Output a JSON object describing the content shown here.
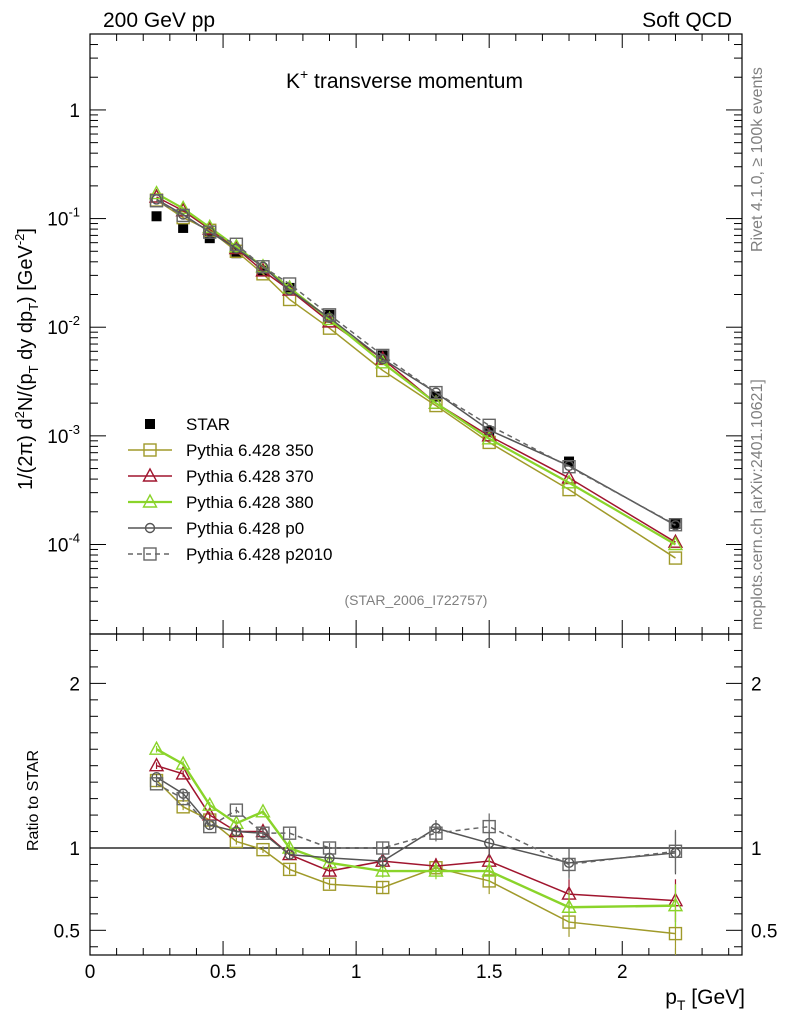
{
  "header": {
    "left": "200 GeV pp",
    "right": "Soft QCD"
  },
  "side_labels": {
    "rivet": "Rivet 4.1.0, ≥ 100k events",
    "mcplots": "mcplots.cern.ch [arXiv:2401.10621]"
  },
  "watermark": "(STAR_2006_I722757)",
  "colors": {
    "star": "#000000",
    "p350": "#a09a2a",
    "p370": "#a0152e",
    "p380": "#8ad42a",
    "p0": "#555555",
    "p2010": "#666666"
  },
  "chart_data": [
    {
      "type": "scatter",
      "panel": "main",
      "title": "K⁺ transverse momentum",
      "title_main": "K",
      "title_sup": "+",
      "title_rest": " transverse momentum",
      "ylabel": "1/(2π)  d²N/(pT dy dpT) [GeV⁻²]",
      "ylabel_parts": {
        "a": "1/(2",
        "pi": "π",
        "b": ")   d",
        "two": "2",
        "c": "N/(p",
        "T1": "T",
        "d": " dy dp",
        "T2": "T",
        "e": ") [GeV",
        "m2": "-2",
        "f": "]"
      },
      "yscale": "log",
      "ylim": [
        1.5e-05,
        5
      ],
      "xlim": [
        0,
        2.45
      ],
      "y_ticks": [
        {
          "value": 1,
          "label": "1",
          "base": "",
          "exp": ""
        },
        {
          "value": 0.1,
          "label": "",
          "base": "10",
          "exp": "-1"
        },
        {
          "value": 0.01,
          "label": "",
          "base": "10",
          "exp": "-2"
        },
        {
          "value": 0.001,
          "label": "",
          "base": "10",
          "exp": "-3"
        },
        {
          "value": 0.0001,
          "label": "",
          "base": "10",
          "exp": "-4"
        }
      ],
      "x": [
        0.25,
        0.35,
        0.45,
        0.55,
        0.65,
        0.75,
        0.9,
        1.1,
        1.3,
        1.5,
        1.8,
        2.2
      ],
      "series": [
        {
          "key": "star",
          "name": "STAR",
          "marker": "filled-square",
          "style": "none",
          "values": [
            0.105,
            0.082,
            0.066,
            0.048,
            0.033,
            0.023,
            0.013,
            0.0055,
            0.0023,
            0.0011,
            0.00058,
            0.000155
          ]
        },
        {
          "key": "p350",
          "name": "Pythia 6.428 350",
          "marker": "open-square",
          "style": "solid",
          "values": [
            0.148,
            0.102,
            0.078,
            0.05,
            0.031,
            0.018,
            0.0098,
            0.004,
            0.0019,
            0.00087,
            0.00032,
            7.5e-05
          ]
        },
        {
          "key": "p370",
          "name": "Pythia 6.428 370",
          "marker": "open-triangle",
          "style": "solid",
          "values": [
            0.158,
            0.118,
            0.08,
            0.053,
            0.033,
            0.022,
            0.0112,
            0.0051,
            0.002,
            0.001,
            0.00041,
            0.000105
          ]
        },
        {
          "key": "p380",
          "name": "Pythia 6.428 380",
          "marker": "open-triangle",
          "style": "solid",
          "values": [
            0.17,
            0.124,
            0.083,
            0.055,
            0.036,
            0.023,
            0.0118,
            0.0047,
            0.002,
            0.00094,
            0.00037,
            0.0001
          ]
        },
        {
          "key": "p0",
          "name": "Pythia 6.428 p0",
          "marker": "open-circle",
          "style": "solid",
          "values": [
            0.15,
            0.109,
            0.075,
            0.053,
            0.036,
            0.022,
            0.0122,
            0.0051,
            0.0025,
            0.00113,
            0.00053,
            0.00015
          ]
        },
        {
          "key": "p2010",
          "name": "Pythia 6.428 p2010",
          "marker": "open-square",
          "style": "dashed",
          "values": [
            0.146,
            0.107,
            0.075,
            0.058,
            0.036,
            0.025,
            0.013,
            0.0055,
            0.0025,
            0.00125,
            0.00052,
            0.000152
          ]
        }
      ]
    },
    {
      "type": "scatter",
      "panel": "ratio",
      "ylabel": "Ratio to STAR",
      "xlabel": "pT [GeV]",
      "xlabel_parts": {
        "p": "p",
        "T": "T",
        "unit": " [GeV]"
      },
      "ylim": [
        0.35,
        2.3
      ],
      "xlim": [
        0,
        2.45
      ],
      "y_ticks": [
        {
          "value": 0.5,
          "label": "0.5"
        },
        {
          "value": 1,
          "label": "1"
        },
        {
          "value": 2,
          "label": "2"
        }
      ],
      "x_ticks": [
        {
          "value": 0,
          "label": "0"
        },
        {
          "value": 0.5,
          "label": "0.5"
        },
        {
          "value": 1,
          "label": "1"
        },
        {
          "value": 1.5,
          "label": "1.5"
        },
        {
          "value": 2,
          "label": "2"
        }
      ],
      "x": [
        0.25,
        0.35,
        0.45,
        0.55,
        0.65,
        0.75,
        0.9,
        1.1,
        1.3,
        1.5,
        1.8,
        2.2
      ],
      "series": [
        {
          "key": "p350",
          "name": "Pythia 6.428 350",
          "marker": "open-square",
          "style": "solid",
          "values": [
            1.41,
            1.25,
            1.17,
            1.04,
            0.99,
            0.87,
            0.78,
            0.76,
            0.88,
            0.8,
            0.55,
            0.48
          ],
          "errors": [
            0.02,
            0.02,
            0.02,
            0.02,
            0.02,
            0.03,
            0.03,
            0.04,
            0.05,
            0.08,
            0.09,
            0.13
          ]
        },
        {
          "key": "p370",
          "name": "Pythia 6.428 370",
          "marker": "open-triangle",
          "style": "solid",
          "values": [
            1.5,
            1.45,
            1.2,
            1.1,
            1.1,
            0.96,
            0.86,
            0.92,
            0.89,
            0.92,
            0.72,
            0.68
          ],
          "errors": [
            0.02,
            0.02,
            0.02,
            0.02,
            0.02,
            0.03,
            0.03,
            0.04,
            0.05,
            0.08,
            0.09,
            0.13
          ]
        },
        {
          "key": "p380",
          "name": "Pythia 6.428 380",
          "marker": "open-triangle",
          "style": "solid",
          "values": [
            1.6,
            1.51,
            1.26,
            1.15,
            1.22,
            1.0,
            0.91,
            0.86,
            0.86,
            0.86,
            0.64,
            0.65
          ],
          "errors": [
            0.02,
            0.02,
            0.02,
            0.02,
            0.02,
            0.03,
            0.03,
            0.04,
            0.05,
            0.08,
            0.09,
            0.13
          ]
        },
        {
          "key": "p0",
          "name": "Pythia 6.428 p0",
          "marker": "open-circle",
          "style": "solid",
          "values": [
            1.43,
            1.33,
            1.14,
            1.1,
            1.09,
            0.96,
            0.94,
            0.92,
            1.12,
            1.03,
            0.91,
            0.97
          ],
          "errors": [
            0.02,
            0.02,
            0.02,
            0.02,
            0.02,
            0.03,
            0.03,
            0.04,
            0.05,
            0.08,
            0.09,
            0.13
          ]
        },
        {
          "key": "p2010",
          "name": "Pythia 6.428 p2010",
          "marker": "open-square",
          "style": "dashed",
          "values": [
            1.39,
            1.3,
            1.13,
            1.23,
            1.09,
            1.09,
            1.0,
            1.0,
            1.09,
            1.13,
            0.9,
            0.98
          ],
          "errors": [
            0.02,
            0.02,
            0.02,
            0.02,
            0.02,
            0.03,
            0.03,
            0.04,
            0.05,
            0.08,
            0.09,
            0.13
          ]
        }
      ]
    }
  ]
}
